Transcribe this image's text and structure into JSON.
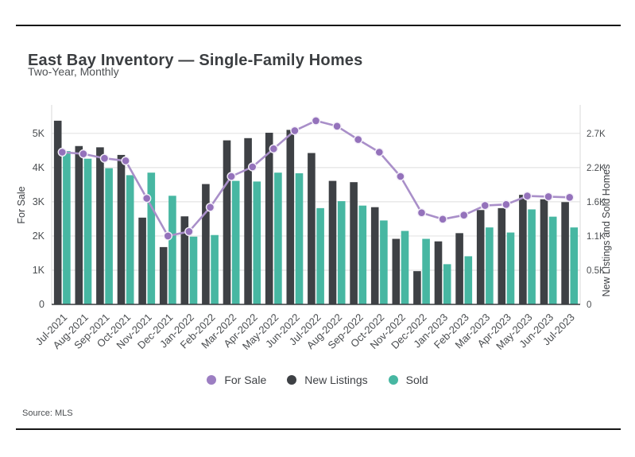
{
  "header": {
    "title": "East Bay Inventory — Single-Family Homes",
    "subtitle": "Two-Year, Monthly"
  },
  "footer": {
    "source": "Source: MLS"
  },
  "legend": [
    {
      "label": "For Sale",
      "color": "#9c7ec2"
    },
    {
      "label": "New Listings",
      "color": "#3e4145"
    },
    {
      "label": "Sold",
      "color": "#47b7a2"
    }
  ],
  "chart_data": {
    "type": "bar+line",
    "title": "East Bay Inventory — Single-Family Homes",
    "subtitle": "Two-Year, Monthly",
    "grid": true,
    "legend_position": "bottom",
    "categories": [
      "Jul-2021",
      "Aug-2021",
      "Sep-2021",
      "Oct-2021",
      "Nov-2021",
      "Dec-2021",
      "Jan-2022",
      "Feb-2022",
      "Mar-2022",
      "Apr-2022",
      "May-2022",
      "Jun-2022",
      "Jul-2022",
      "Aug-2022",
      "Sep-2022",
      "Oct-2022",
      "Nov-2022",
      "Dec-2022",
      "Jan-2023",
      "Feb-2023",
      "Mar-2023",
      "Apr-2023",
      "May-2023",
      "Jun-2023",
      "Jul-2023"
    ],
    "left_axis": {
      "label": "For Sale",
      "ticks": [
        "0",
        "1K",
        "2K",
        "3K",
        "4K",
        "5K"
      ],
      "tick_values": [
        0,
        1000,
        2000,
        3000,
        4000,
        5000
      ],
      "max": 5600
    },
    "right_axis": {
      "label": "New Listings and Sold Homes",
      "ticks": [
        "0",
        "0.5K",
        "1.1K",
        "1.6K",
        "2.2K",
        "2.7K"
      ],
      "tick_values": [
        0,
        540,
        1080,
        1620,
        2160,
        2700
      ],
      "max": 3024
    },
    "series": [
      {
        "name": "For Sale",
        "type": "line",
        "axis": "left",
        "color": "#a98fc9",
        "dot_color": "#9472bb",
        "values": [
          4450,
          4400,
          4270,
          4200,
          3100,
          2000,
          2130,
          2840,
          3740,
          4020,
          4550,
          5080,
          5370,
          5210,
          4820,
          4450,
          3740,
          2680,
          2490,
          2610,
          2890,
          2920,
          3170,
          3150,
          3130
        ]
      },
      {
        "name": "New Listings",
        "type": "bar",
        "axis": "right",
        "color": "#3e4145",
        "values": [
          2900,
          2500,
          2480,
          2360,
          1370,
          905,
          1390,
          1900,
          2590,
          2625,
          2710,
          2755,
          2390,
          1950,
          1930,
          1535,
          1035,
          525,
          995,
          1125,
          1490,
          1520,
          1730,
          1660,
          1615
        ]
      },
      {
        "name": "Sold",
        "type": "bar",
        "axis": "right",
        "color": "#47b7a2",
        "values": [
          2420,
          2300,
          2150,
          2040,
          2080,
          1715,
          1070,
          1095,
          1950,
          1940,
          2080,
          2070,
          1520,
          1630,
          1560,
          1325,
          1160,
          1035,
          635,
          760,
          1215,
          1135,
          1500,
          1385,
          1215
        ]
      }
    ]
  }
}
